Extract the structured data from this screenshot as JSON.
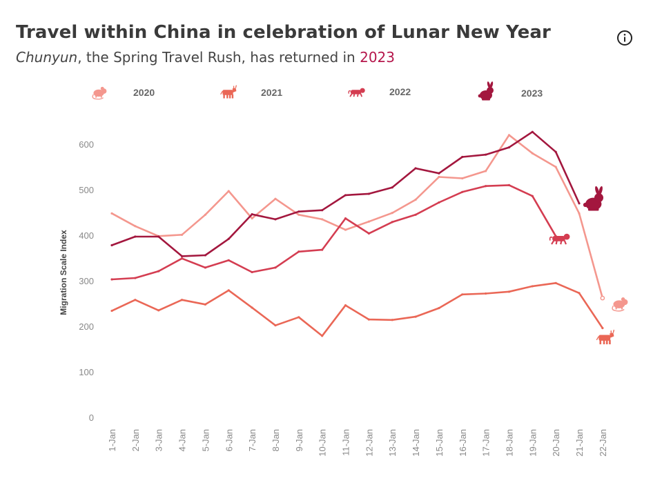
{
  "header": {
    "title": "Travel within China in celebration of Lunar New Year",
    "subtitle_italic": "Chunyun",
    "subtitle_middle": ", the Spring Travel Rush, has returned in ",
    "subtitle_year": "2023"
  },
  "info_icon": "info-icon",
  "legend": [
    {
      "label": "2020",
      "icon": "rat-icon",
      "color": "#f4978e"
    },
    {
      "label": "2021",
      "icon": "ox-icon",
      "color": "#ea6756"
    },
    {
      "label": "2022",
      "icon": "tiger-icon",
      "color": "#d43d51"
    },
    {
      "label": "2023",
      "icon": "rabbit-icon",
      "color": "#a3173e"
    }
  ],
  "chart_data": {
    "type": "line",
    "ylabel": "Migration Scale Index",
    "xlabel": "",
    "ylim": [
      0,
      640
    ],
    "yticks": [
      0,
      100,
      200,
      300,
      400,
      500,
      600
    ],
    "categories": [
      "1-Jan",
      "2-Jan",
      "3-Jan",
      "4-Jan",
      "5-Jan",
      "6-Jan",
      "7-Jan",
      "8-Jan",
      "9-Jan",
      "10-Jan",
      "11-Jan",
      "12-Jan",
      "13-Jan",
      "14-Jan",
      "15-Jan",
      "16-Jan",
      "17-Jan",
      "18-Jan",
      "19-Jan",
      "20-Jan",
      "21-Jan",
      "22-Jan"
    ],
    "grid": false,
    "series": [
      {
        "name": "2020",
        "color": "#f4978e",
        "icon": "rat-icon",
        "values": [
          448,
          420,
          398,
          401,
          445,
          497,
          437,
          480,
          445,
          435,
          412,
          430,
          449,
          478,
          528,
          525,
          541,
          620,
          580,
          550,
          448,
          262
        ]
      },
      {
        "name": "2021",
        "color": "#ea6756",
        "icon": "ox-icon",
        "values": [
          234,
          258,
          235,
          258,
          248,
          279,
          241,
          202,
          220,
          179,
          246,
          215,
          214,
          221,
          240,
          270,
          272,
          276,
          288,
          295,
          273,
          196
        ]
      },
      {
        "name": "2022",
        "color": "#d43d51",
        "icon": "tiger-icon",
        "values": [
          303,
          306,
          321,
          349,
          329,
          345,
          319,
          329,
          364,
          368,
          437,
          404,
          429,
          445,
          472,
          495,
          508,
          510,
          486,
          398,
          null,
          null
        ]
      },
      {
        "name": "2023",
        "color": "#a3173e",
        "icon": "rabbit-icon",
        "values": [
          378,
          397,
          397,
          354,
          356,
          392,
          446,
          435,
          452,
          455,
          488,
          491,
          505,
          547,
          536,
          572,
          577,
          593,
          627,
          583,
          470,
          null
        ]
      }
    ]
  }
}
